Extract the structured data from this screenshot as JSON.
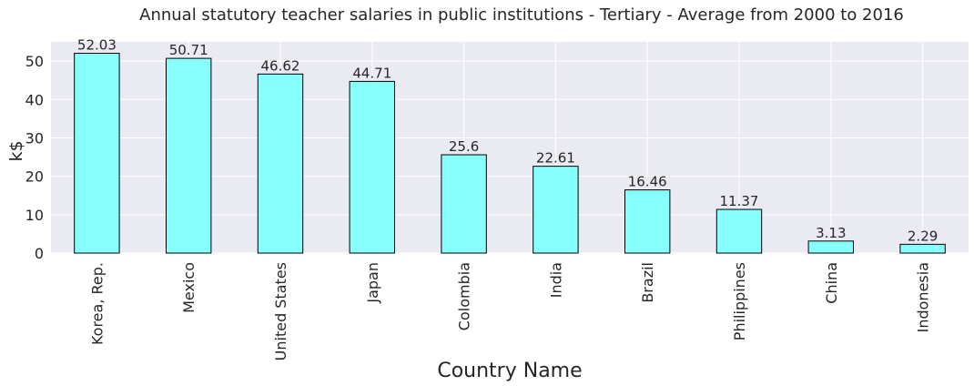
{
  "chart_data": {
    "type": "bar",
    "title": "Annual statutory teacher salaries in public institutions - Tertiary - Average from 2000 to 2016",
    "xlabel": "Country Name",
    "ylabel": "k$",
    "categories": [
      "Korea, Rep.",
      "Mexico",
      "United States",
      "Japan",
      "Colombia",
      "India",
      "Brazil",
      "Philippines",
      "China",
      "Indonesia"
    ],
    "values": [
      52.03,
      50.71,
      46.62,
      44.71,
      25.6,
      22.61,
      16.46,
      11.37,
      3.13,
      2.29
    ],
    "value_labels": [
      "52.03",
      "50.71",
      "46.62",
      "44.71",
      "25.6",
      "22.61",
      "16.46",
      "11.37",
      "3.13",
      "2.29"
    ],
    "ylim": [
      0,
      55
    ],
    "yticks": [
      0,
      10,
      20,
      30,
      40,
      50
    ],
    "grid": true,
    "colors": {
      "bar_fill": "#87fffa",
      "bar_edge": "#000000",
      "plot_background": "#eaeaf2",
      "grid": "#ffffff"
    }
  }
}
